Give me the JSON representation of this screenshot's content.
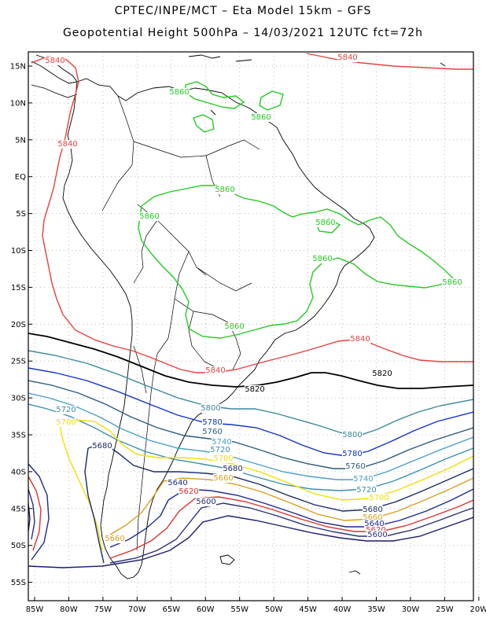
{
  "header": {
    "line1": "CPTEC/INPE/MCT –  Eta Model 15km – GFS",
    "line2": "Geopotential Height 500hPa – 14/03/2021 12UTC fct=72h"
  },
  "axes": {
    "lat_labels": [
      "15N",
      "10N",
      "5N",
      "EQ",
      "5S",
      "10S",
      "15S",
      "20S",
      "25S",
      "30S",
      "35S",
      "40S",
      "45S",
      "50S",
      "55S"
    ],
    "lon_labels": [
      "85W",
      "80W",
      "75W",
      "70W",
      "65W",
      "60W",
      "55W",
      "50W",
      "45W",
      "40W",
      "35W",
      "30W",
      "25W",
      "20W"
    ]
  },
  "contour_colors": {
    "5580": "#1a1a6e",
    "5600": "#2a2f7a",
    "5620": "#e03030",
    "5640": "#1c2a90",
    "5660": "#d8a020",
    "5680": "#1a2a66",
    "5700": "#f0e000",
    "5720": "#3a8fb0",
    "5740": "#4aa0c8",
    "5760": "#2a5a7a",
    "5780": "#1030d0",
    "5800": "#3a8898",
    "5820": "#000000",
    "5840": "#e84040",
    "5860": "#22cc22"
  },
  "contour_labels": [
    {
      "text": "5840",
      "color": "5840"
    },
    {
      "text": "5840",
      "color": "5840"
    },
    {
      "text": "5860",
      "color": "5860"
    },
    {
      "text": "5860",
      "color": "5860"
    },
    {
      "text": "5840",
      "color": "5840"
    },
    {
      "text": "5860",
      "color": "5860"
    },
    {
      "text": "5860",
      "color": "5860"
    },
    {
      "text": "5860",
      "color": "5860"
    },
    {
      "text": "5860",
      "color": "5860"
    },
    {
      "text": "5860",
      "color": "5860"
    },
    {
      "text": "5860",
      "color": "5860"
    },
    {
      "text": "5840",
      "color": "5840"
    },
    {
      "text": "5840",
      "color": "5840"
    },
    {
      "text": "5820",
      "color": "5820"
    },
    {
      "text": "5820",
      "color": "5820"
    },
    {
      "text": "5720",
      "color": "5720"
    },
    {
      "text": "5800",
      "color": "5800"
    },
    {
      "text": "5700",
      "color": "5700"
    },
    {
      "text": "5780",
      "color": "5780"
    },
    {
      "text": "5760",
      "color": "5760"
    },
    {
      "text": "5740",
      "color": "5740"
    },
    {
      "text": "5720",
      "color": "5720"
    },
    {
      "text": "5680",
      "color": "5680"
    },
    {
      "text": "5700",
      "color": "5700"
    },
    {
      "text": "5680",
      "color": "5680"
    },
    {
      "text": "5660",
      "color": "5660"
    },
    {
      "text": "5640",
      "color": "5640"
    },
    {
      "text": "5620",
      "color": "5620"
    },
    {
      "text": "5600",
      "color": "5600"
    },
    {
      "text": "5800",
      "color": "5800"
    },
    {
      "text": "5780",
      "color": "5780"
    },
    {
      "text": "5760",
      "color": "5760"
    },
    {
      "text": "5740",
      "color": "5740"
    },
    {
      "text": "5720",
      "color": "5720"
    },
    {
      "text": "5700",
      "color": "5700"
    },
    {
      "text": "5680",
      "color": "5680"
    },
    {
      "text": "5660",
      "color": "5660"
    },
    {
      "text": "5640",
      "color": "5640"
    },
    {
      "text": "5620",
      "color": "5620"
    },
    {
      "text": "5600",
      "color": "5600"
    },
    {
      "text": "5660",
      "color": "5660"
    }
  ]
}
